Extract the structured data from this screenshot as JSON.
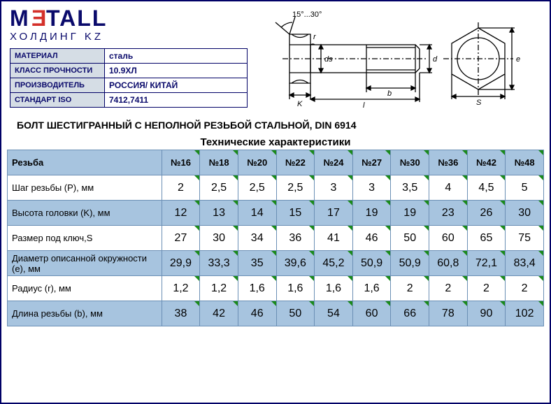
{
  "logo": {
    "text_pre": "M",
    "text_red": "E",
    "text_post": "TALL",
    "sub": "ХОЛДИНГ KZ"
  },
  "info": {
    "rows": [
      {
        "label": "МАТЕРИАЛ",
        "value": "сталь"
      },
      {
        "label": "КЛАСС ПРОЧНОСТИ",
        "value": "10.9ХЛ"
      },
      {
        "label": "ПРОИЗВОДИТЕЛЬ",
        "value": "РОССИЯ/ КИТАЙ"
      },
      {
        "label": "СТАНДАРТ ISO",
        "value": "7412,7411"
      }
    ]
  },
  "diagram": {
    "angle_label": "15°...30°",
    "labels": {
      "r": "r",
      "ds": "ds",
      "K": "K",
      "b": "b",
      "l": "l",
      "d": "d",
      "e": "e",
      "S": "S"
    },
    "stroke": "#000000",
    "fill": "#ffffff"
  },
  "title": "БОЛТ ШЕСТИГРАННЫЙ С НЕПОЛНОЙ РЕЗЬБОЙ СТАЛЬНОЙ, DIN 6914",
  "subtitle": "Технические характеристики",
  "spec": {
    "header_label": "Резьба",
    "columns": [
      "№16",
      "№18",
      "№20",
      "№22",
      "№24",
      "№27",
      "№30",
      "№36",
      "№42",
      "№48"
    ],
    "rows": [
      {
        "label": "Шаг резьбы (P), мм",
        "bg": "white",
        "values": [
          "2",
          "2,5",
          "2,5",
          "2,5",
          "3",
          "3",
          "3,5",
          "4",
          "4,5",
          "5"
        ]
      },
      {
        "label": "Высота головки (K), мм",
        "bg": "blue",
        "values": [
          "12",
          "13",
          "14",
          "15",
          "17",
          "19",
          "19",
          "23",
          "26",
          "30"
        ]
      },
      {
        "label": "Размер под ключ,S",
        "bg": "white",
        "values": [
          "27",
          "30",
          "34",
          "36",
          "41",
          "46",
          "50",
          "60",
          "65",
          "75"
        ]
      },
      {
        "label": "Диаметр описанной окружности (e), мм",
        "bg": "blue",
        "values": [
          "29,9",
          "33,3",
          "35",
          "39,6",
          "45,2",
          "50,9",
          "50,9",
          "60,8",
          "72,1",
          "83,4"
        ]
      },
      {
        "label": "Радиус (r), мм",
        "bg": "white",
        "values": [
          "1,2",
          "1,2",
          "1,6",
          "1,6",
          "1,6",
          "1,6",
          "2",
          "2",
          "2",
          "2"
        ]
      },
      {
        "label": "Длина резьбы (b), мм",
        "bg": "blue",
        "values": [
          "38",
          "42",
          "46",
          "50",
          "54",
          "60",
          "66",
          "78",
          "90",
          "102"
        ]
      }
    ],
    "colors": {
      "header_bg": "#a7c4df",
      "row_blue_bg": "#a7c4df",
      "row_white_bg": "#ffffff",
      "border": "#6b8fb5",
      "corner_marker": "#1a8a1a"
    }
  }
}
